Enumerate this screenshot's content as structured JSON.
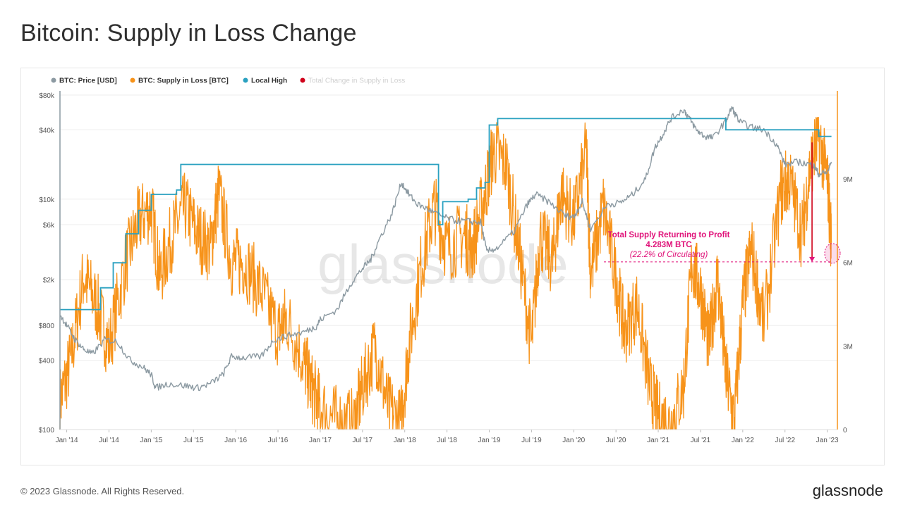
{
  "page": {
    "title": "Bitcoin: Supply in Loss Change",
    "copyright": "© 2023 Glassnode. All Rights Reserved.",
    "brand": "glassnode",
    "watermark": "glassnode"
  },
  "colors": {
    "price": "#8c9aa2",
    "supply": "#f7931a",
    "local_high": "#2aa1c0",
    "change": "#d0021b",
    "annotation": "#e0137a"
  },
  "chart_data": {
    "type": "line",
    "legend": [
      {
        "name": "BTC: Price [USD]",
        "color": "#8c9aa2",
        "faded": false
      },
      {
        "name": "BTC: Supply in Loss [BTC]",
        "color": "#f7931a",
        "faded": false
      },
      {
        "name": "Local High",
        "color": "#2aa1c0",
        "faded": false
      },
      {
        "name": "Total Change in Supply in Loss",
        "color": "#d0021b",
        "faded": true
      }
    ],
    "legend_position": "top-left",
    "grid": true,
    "x_ticks": [
      "Jan '14",
      "Jul '14",
      "Jan '15",
      "Jul '15",
      "Jan '16",
      "Jul '16",
      "Jan '17",
      "Jul '17",
      "Jan '18",
      "Jul '18",
      "Jan '19",
      "Jul '19",
      "Jan '20",
      "Jul '20",
      "Jan '21",
      "Jul '21",
      "Jan '22",
      "Jul '22",
      "Jan '23"
    ],
    "x_range": [
      2013.92,
      2023.12
    ],
    "y_left": {
      "scale": "log",
      "ticks": [
        "$100",
        "$400",
        "$800",
        "$2k",
        "$6k",
        "$10k",
        "$40k",
        "$80k"
      ],
      "tick_values": [
        100,
        400,
        800,
        2000,
        6000,
        10000,
        40000,
        80000
      ],
      "range": [
        100,
        80000
      ]
    },
    "y_right": {
      "scale": "linear",
      "ticks": [
        "0",
        "3M",
        "6M",
        "9M"
      ],
      "tick_values": [
        0,
        3000000,
        6000000,
        9000000
      ],
      "range": [
        0,
        12000000
      ]
    },
    "series": [
      {
        "name": "BTC: Price [USD]",
        "axis": "left",
        "x": [
          2013.92,
          2014.0,
          2014.1,
          2014.2,
          2014.3,
          2014.45,
          2014.6,
          2014.75,
          2014.9,
          2015.0,
          2015.05,
          2015.2,
          2015.4,
          2015.55,
          2015.7,
          2015.85,
          2015.95,
          2016.1,
          2016.3,
          2016.45,
          2016.6,
          2016.8,
          2016.95,
          2017.0,
          2017.2,
          2017.35,
          2017.5,
          2017.6,
          2017.7,
          2017.85,
          2017.96,
          2018.05,
          2018.15,
          2018.3,
          2018.45,
          2018.6,
          2018.75,
          2018.9,
          2018.97,
          2019.1,
          2019.3,
          2019.45,
          2019.55,
          2019.7,
          2019.9,
          2020.0,
          2020.1,
          2020.2,
          2020.4,
          2020.55,
          2020.7,
          2020.85,
          2020.96,
          2021.05,
          2021.15,
          2021.3,
          2021.37,
          2021.45,
          2021.55,
          2021.65,
          2021.8,
          2021.87,
          2021.96,
          2022.1,
          2022.25,
          2022.4,
          2022.5,
          2022.65,
          2022.8,
          2022.85,
          2022.9,
          2023.0,
          2023.05
        ],
        "y": [
          1000,
          800,
          600,
          500,
          450,
          600,
          580,
          400,
          350,
          300,
          230,
          250,
          240,
          230,
          250,
          300,
          430,
          420,
          430,
          600,
          650,
          700,
          780,
          900,
          1100,
          1800,
          2500,
          3000,
          4500,
          7500,
          14000,
          11000,
          9000,
          8000,
          7000,
          6500,
          6400,
          6300,
          3500,
          3800,
          5300,
          9000,
          11000,
          9500,
          7200,
          7000,
          9500,
          5500,
          9000,
          9300,
          11000,
          15000,
          28000,
          36000,
          50000,
          60000,
          50000,
          40000,
          35000,
          34000,
          48000,
          62000,
          47000,
          42000,
          40000,
          30000,
          20000,
          21000,
          20000,
          19000,
          16500,
          17000,
          21000
        ]
      },
      {
        "name": "BTC: Supply in Loss [BTC]",
        "axis": "right",
        "x": [
          2013.92,
          2014.05,
          2014.2,
          2014.35,
          2014.5,
          2014.7,
          2014.85,
          2015.0,
          2015.1,
          2015.25,
          2015.4,
          2015.55,
          2015.7,
          2015.8,
          2015.95,
          2016.1,
          2016.3,
          2016.5,
          2016.6,
          2016.8,
          2016.9,
          2017.0,
          2017.2,
          2017.4,
          2017.5,
          2017.65,
          2017.8,
          2017.95,
          2018.05,
          2018.2,
          2018.35,
          2018.5,
          2018.7,
          2018.8,
          2018.95,
          2019.05,
          2019.2,
          2019.35,
          2019.5,
          2019.6,
          2019.75,
          2019.85,
          2020.0,
          2020.15,
          2020.2,
          2020.35,
          2020.5,
          2020.6,
          2020.75,
          2020.9,
          2021.0,
          2021.15,
          2021.3,
          2021.4,
          2021.5,
          2021.6,
          2021.7,
          2021.8,
          2021.9,
          2022.0,
          2022.1,
          2022.25,
          2022.45,
          2022.55,
          2022.7,
          2022.8,
          2022.9,
          2023.0,
          2023.05
        ],
        "y": [
          1000000,
          2500000,
          5500000,
          4500000,
          3000000,
          6000000,
          7500000,
          8000000,
          5500000,
          7000000,
          8000000,
          7000000,
          6500000,
          8500000,
          6000000,
          6000000,
          5000000,
          3500000,
          4000000,
          2500000,
          1500000,
          800000,
          300000,
          200000,
          1500000,
          3000000,
          800000,
          200000,
          3000000,
          6000000,
          8000000,
          6500000,
          7000000,
          6500000,
          8500000,
          10000000,
          9500000,
          6500000,
          3000000,
          7000000,
          6000000,
          8500000,
          7500000,
          10000000,
          5500000,
          8000000,
          5500000,
          3500000,
          4500000,
          1500000,
          500000,
          200000,
          1500000,
          6000000,
          5000000,
          3000000,
          5500000,
          2000000,
          300000,
          4500000,
          6500000,
          3800000,
          8500000,
          9000000,
          7000000,
          9500000,
          10500000,
          9000000,
          6700000
        ]
      },
      {
        "name": "Local High",
        "axis": "left",
        "x": [
          2013.92,
          2014.25,
          2014.4,
          2014.55,
          2014.7,
          2014.85,
          2015.0,
          2015.3,
          2015.35,
          2015.6,
          2016.0,
          2016.9,
          2017.0,
          2017.3,
          2017.55,
          2017.7,
          2017.85,
          2017.96,
          2018.3,
          2018.4,
          2018.45,
          2018.6,
          2018.75,
          2018.85,
          2018.95,
          2019.0,
          2019.1,
          2019.5,
          2020.0,
          2020.7,
          2020.96,
          2021.3,
          2021.5,
          2021.65,
          2021.8,
          2021.9,
          2022.0,
          2022.5,
          2022.85,
          2022.9,
          2023.05
        ],
        "y": [
          1100,
          1100,
          1700,
          2800,
          5000,
          8000,
          11000,
          12000,
          20000,
          20000,
          20000,
          20000,
          20000,
          20000,
          20000,
          20000,
          20000,
          20000,
          20000,
          6000,
          9500,
          9500,
          10000,
          12500,
          14000,
          44000,
          50000,
          50000,
          50000,
          50000,
          50000,
          50000,
          50000,
          50000,
          40000,
          40000,
          40000,
          40000,
          40000,
          35000,
          35000
        ]
      }
    ],
    "annotations": {
      "title": "Total Supply Returning to Profit",
      "value": "4.283M BTC",
      "note": "(22.2% of Circulating)",
      "from_x": 2022.82,
      "from_y": 10300000,
      "to_y": 6017000
    }
  }
}
